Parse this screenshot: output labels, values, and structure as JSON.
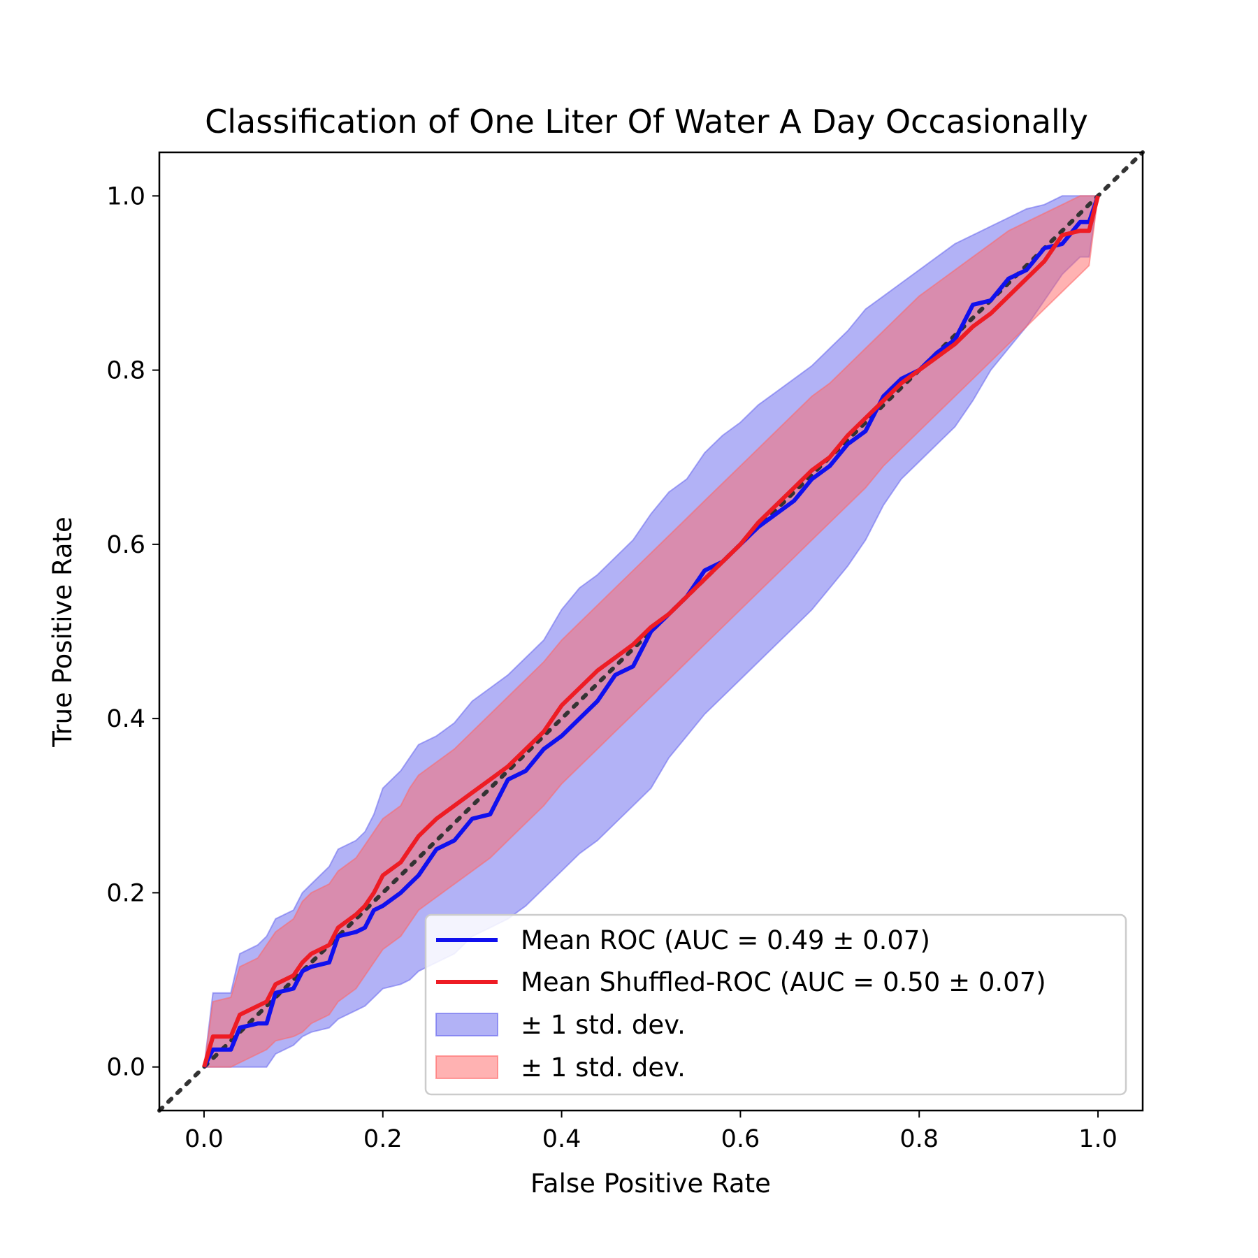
{
  "chart_data": {
    "type": "line",
    "title": "Classification of One Liter Of Water A Day Occasionally",
    "xlabel": "False Positive Rate",
    "ylabel": "True Positive Rate",
    "xlim": [
      -0.05,
      1.05
    ],
    "ylim": [
      -0.05,
      1.05
    ],
    "xticks": [
      "0.0",
      "0.2",
      "0.4",
      "0.6",
      "0.8",
      "1.0"
    ],
    "yticks": [
      "0.0",
      "0.2",
      "0.4",
      "0.6",
      "0.8",
      "1.0"
    ],
    "grid": false,
    "legend_position": "lower-right",
    "x": [
      0.0,
      0.01,
      0.03,
      0.04,
      0.06,
      0.07,
      0.08,
      0.1,
      0.11,
      0.12,
      0.14,
      0.15,
      0.17,
      0.18,
      0.19,
      0.2,
      0.22,
      0.23,
      0.24,
      0.26,
      0.28,
      0.3,
      0.32,
      0.34,
      0.36,
      0.38,
      0.4,
      0.42,
      0.44,
      0.46,
      0.48,
      0.5,
      0.52,
      0.54,
      0.56,
      0.58,
      0.6,
      0.62,
      0.64,
      0.66,
      0.68,
      0.7,
      0.72,
      0.74,
      0.76,
      0.78,
      0.8,
      0.82,
      0.84,
      0.86,
      0.88,
      0.9,
      0.92,
      0.94,
      0.96,
      0.98,
      0.99,
      1.0
    ],
    "series": [
      {
        "name": "Mean ROC (AUC = 0.49 ± 0.07)",
        "color": "#1010ee",
        "values": [
          0.0,
          0.02,
          0.02,
          0.045,
          0.05,
          0.05,
          0.085,
          0.09,
          0.11,
          0.115,
          0.12,
          0.15,
          0.155,
          0.16,
          0.18,
          0.185,
          0.2,
          0.21,
          0.22,
          0.25,
          0.26,
          0.285,
          0.29,
          0.33,
          0.34,
          0.365,
          0.38,
          0.4,
          0.42,
          0.45,
          0.46,
          0.5,
          0.52,
          0.54,
          0.57,
          0.58,
          0.6,
          0.62,
          0.635,
          0.65,
          0.675,
          0.69,
          0.715,
          0.73,
          0.77,
          0.79,
          0.8,
          0.82,
          0.835,
          0.875,
          0.88,
          0.905,
          0.915,
          0.94,
          0.945,
          0.97,
          0.97,
          1.0
        ]
      },
      {
        "name": "Mean Shuffled-ROC (AUC = 0.50 ± 0.07)",
        "color": "#ee1c24",
        "values": [
          0.0,
          0.035,
          0.035,
          0.06,
          0.07,
          0.075,
          0.095,
          0.105,
          0.12,
          0.13,
          0.14,
          0.16,
          0.175,
          0.185,
          0.2,
          0.22,
          0.235,
          0.25,
          0.265,
          0.285,
          0.3,
          0.315,
          0.33,
          0.345,
          0.365,
          0.385,
          0.415,
          0.435,
          0.455,
          0.47,
          0.485,
          0.505,
          0.52,
          0.54,
          0.56,
          0.58,
          0.6,
          0.625,
          0.645,
          0.665,
          0.685,
          0.7,
          0.725,
          0.745,
          0.765,
          0.785,
          0.8,
          0.815,
          0.83,
          0.85,
          0.865,
          0.885,
          0.905,
          0.925,
          0.955,
          0.96,
          0.96,
          1.0
        ]
      }
    ],
    "bands": [
      {
        "name": "± 1 std. dev.",
        "color": "#6666ee",
        "upper": [
          0.0,
          0.085,
          0.085,
          0.13,
          0.14,
          0.15,
          0.17,
          0.18,
          0.2,
          0.21,
          0.23,
          0.25,
          0.26,
          0.27,
          0.29,
          0.32,
          0.34,
          0.355,
          0.37,
          0.38,
          0.395,
          0.42,
          0.435,
          0.45,
          0.47,
          0.49,
          0.525,
          0.55,
          0.565,
          0.585,
          0.605,
          0.635,
          0.66,
          0.675,
          0.705,
          0.725,
          0.74,
          0.76,
          0.775,
          0.79,
          0.805,
          0.825,
          0.845,
          0.87,
          0.885,
          0.9,
          0.915,
          0.93,
          0.945,
          0.955,
          0.965,
          0.975,
          0.985,
          0.99,
          1.0,
          1.0,
          1.0,
          1.0
        ],
        "lower": [
          0.0,
          0.0,
          0.0,
          0.0,
          0.0,
          0.0,
          0.015,
          0.025,
          0.035,
          0.04,
          0.045,
          0.055,
          0.065,
          0.07,
          0.08,
          0.09,
          0.095,
          0.1,
          0.11,
          0.12,
          0.13,
          0.15,
          0.16,
          0.17,
          0.185,
          0.205,
          0.225,
          0.245,
          0.26,
          0.28,
          0.3,
          0.32,
          0.355,
          0.38,
          0.405,
          0.425,
          0.445,
          0.465,
          0.485,
          0.505,
          0.525,
          0.55,
          0.575,
          0.605,
          0.645,
          0.675,
          0.695,
          0.715,
          0.735,
          0.765,
          0.8,
          0.825,
          0.85,
          0.88,
          0.91,
          0.93,
          0.93,
          1.0
        ]
      },
      {
        "name": "± 1 std. dev.",
        "color": "#ff6666",
        "upper": [
          0.0,
          0.075,
          0.08,
          0.115,
          0.125,
          0.14,
          0.155,
          0.17,
          0.19,
          0.2,
          0.21,
          0.225,
          0.24,
          0.255,
          0.27,
          0.285,
          0.3,
          0.32,
          0.335,
          0.35,
          0.365,
          0.385,
          0.405,
          0.425,
          0.445,
          0.465,
          0.49,
          0.51,
          0.53,
          0.55,
          0.57,
          0.59,
          0.61,
          0.63,
          0.65,
          0.67,
          0.69,
          0.71,
          0.73,
          0.75,
          0.77,
          0.785,
          0.805,
          0.825,
          0.845,
          0.865,
          0.885,
          0.9,
          0.915,
          0.93,
          0.945,
          0.96,
          0.97,
          0.98,
          0.99,
          1.0,
          1.0,
          1.0
        ],
        "lower": [
          0.0,
          0.0,
          0.0,
          0.005,
          0.015,
          0.02,
          0.03,
          0.035,
          0.04,
          0.05,
          0.06,
          0.075,
          0.09,
          0.105,
          0.12,
          0.135,
          0.15,
          0.165,
          0.18,
          0.195,
          0.21,
          0.225,
          0.24,
          0.26,
          0.28,
          0.3,
          0.325,
          0.345,
          0.365,
          0.385,
          0.405,
          0.425,
          0.445,
          0.465,
          0.485,
          0.505,
          0.525,
          0.545,
          0.565,
          0.585,
          0.605,
          0.625,
          0.645,
          0.665,
          0.69,
          0.71,
          0.73,
          0.75,
          0.77,
          0.79,
          0.81,
          0.83,
          0.85,
          0.87,
          0.89,
          0.91,
          0.92,
          1.0
        ]
      }
    ],
    "chance_line": {
      "x": [
        -0.05,
        1.05
      ],
      "y": [
        -0.05,
        1.05
      ],
      "color": "#333333",
      "style": "dotted"
    }
  }
}
